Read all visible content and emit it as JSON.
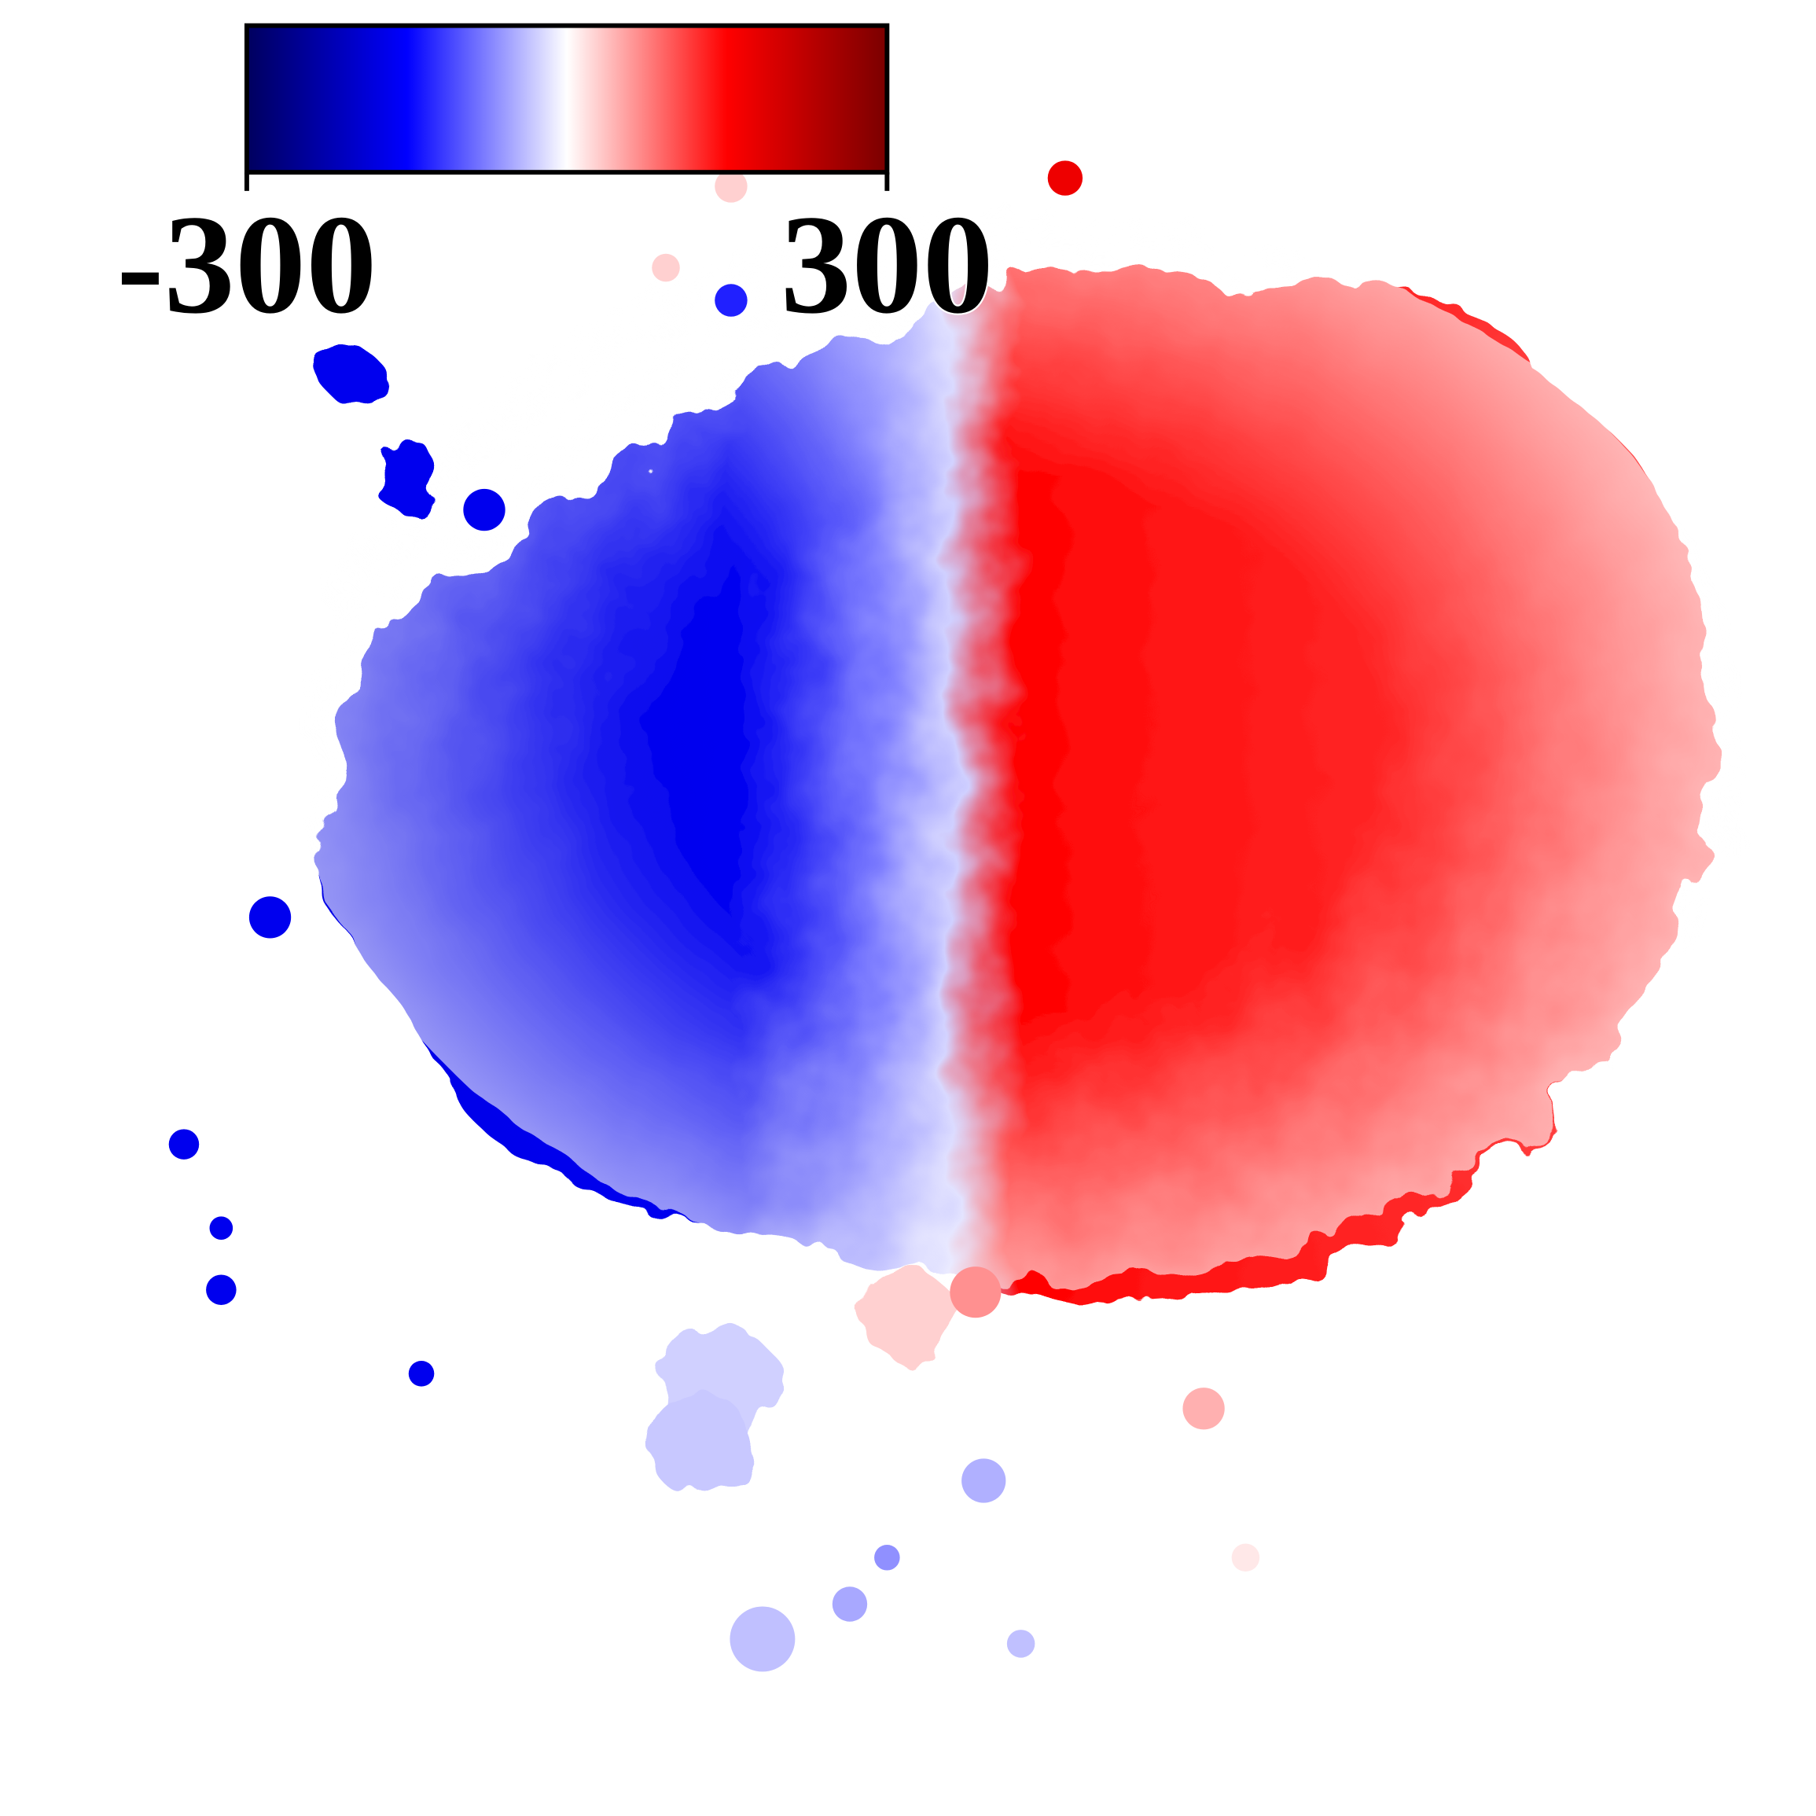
{
  "colorbar": {
    "ticks": [
      -300,
      300
    ],
    "colors": [
      "#00005e",
      "#0000ff",
      "#ffffff",
      "#ff0000",
      "#7a0000"
    ]
  }
}
